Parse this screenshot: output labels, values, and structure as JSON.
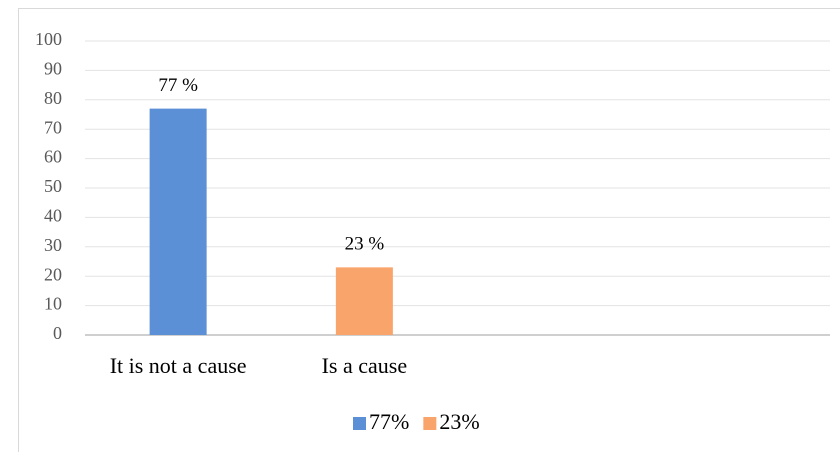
{
  "chart_data": {
    "type": "bar",
    "categories": [
      "It is not a cause",
      "Is a cause",
      null,
      null
    ],
    "series": [
      {
        "name": "77%",
        "color": "#5b8fd6",
        "values": [
          77,
          null,
          null,
          null
        ],
        "value_labels": [
          "77 %",
          null,
          null,
          null
        ]
      },
      {
        "name": "23%",
        "color": "#f9a46b",
        "values": [
          null,
          23,
          null,
          null
        ],
        "value_labels": [
          null,
          "23 %",
          null,
          null
        ]
      }
    ],
    "ylim": [
      0,
      100
    ],
    "yticks": [
      0,
      10,
      20,
      30,
      40,
      50,
      60,
      70,
      80,
      90,
      100
    ],
    "grid": true,
    "legend": "bottom"
  }
}
